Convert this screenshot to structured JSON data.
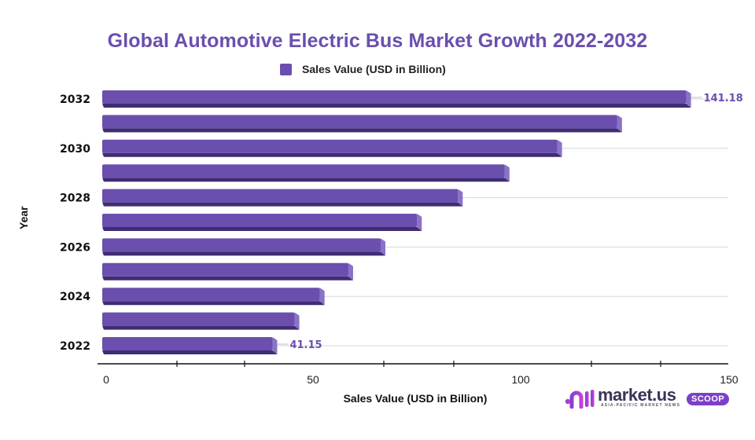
{
  "chart_data": {
    "type": "bar",
    "orientation": "horizontal",
    "title": "Global Automotive Electric Bus Market Growth 2022-2032",
    "xlabel": "Sales Value (USD in Billion)",
    "ylabel": "Year",
    "legend": {
      "entries": [
        "Sales Value (USD in Billion)"
      ],
      "placement": "top-center"
    },
    "categories": [
      "2022",
      "2023",
      "2024",
      "2025",
      "2026",
      "2027",
      "2028",
      "2029",
      "2030",
      "2031",
      "2032"
    ],
    "category_tick_labels": [
      "2022",
      "",
      "2024",
      "",
      "2026",
      "",
      "2028",
      "",
      "2030",
      "",
      "2032"
    ],
    "series": [
      {
        "name": "Sales Value (USD in Billion)",
        "color": "#6a4fae",
        "values": [
          41.15,
          46.5,
          52.6,
          59.5,
          67.3,
          76.1,
          86.0,
          97.3,
          110.0,
          124.5,
          141.18
        ]
      }
    ],
    "data_labels": [
      {
        "category": "2022",
        "text": "41.15"
      },
      {
        "category": "2032",
        "text": "141.18"
      }
    ],
    "xlim": [
      0,
      150
    ],
    "x_ticks": [
      0,
      50,
      100,
      150
    ],
    "grid": true
  },
  "logo": {
    "brand": "market.us",
    "tagline": "ASIA-PACIFIC MARKET NEWS",
    "badge": "SCOOP"
  }
}
